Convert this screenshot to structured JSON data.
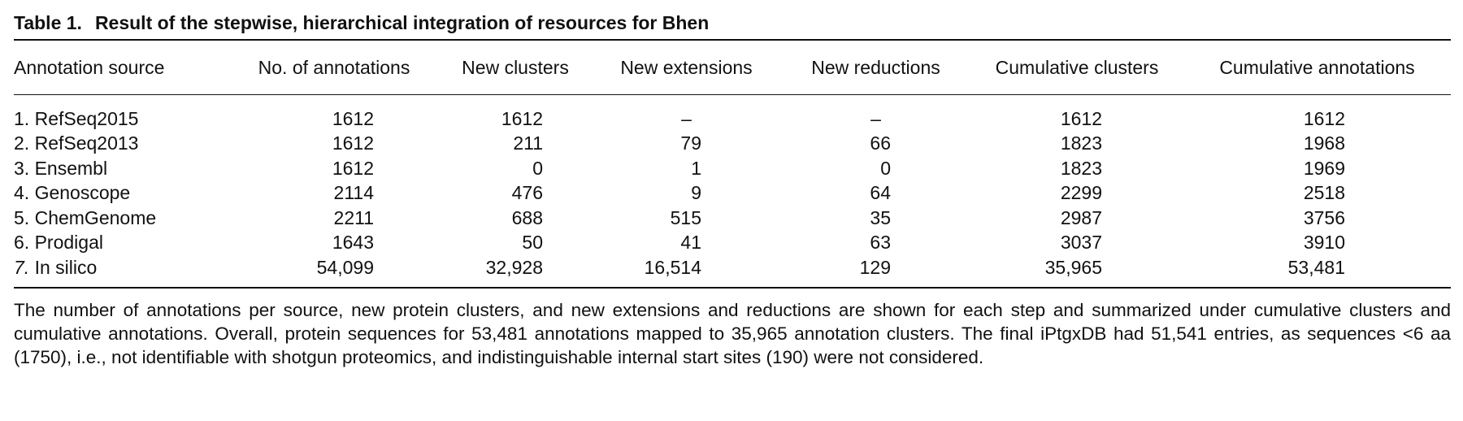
{
  "caption": {
    "label": "Table 1.",
    "title": "Result of the stepwise, hierarchical integration of resources for Bhen"
  },
  "columns": [
    "Annotation source",
    "No. of annotations",
    "New clusters",
    "New extensions",
    "New reductions",
    "Cumulative clusters",
    "Cumulative annotations"
  ],
  "rows": [
    {
      "num": "1.",
      "source": "RefSeq2015",
      "annotations": "1612",
      "new_clusters": "1612",
      "new_extensions": "–",
      "new_reductions": "–",
      "cum_clusters": "1612",
      "cum_annotations": "1612"
    },
    {
      "num": "2.",
      "source": "RefSeq2013",
      "annotations": "1612",
      "new_clusters": "211",
      "new_extensions": "79",
      "new_reductions": "66",
      "cum_clusters": "1823",
      "cum_annotations": "1968"
    },
    {
      "num": "3.",
      "source": "Ensembl",
      "annotations": "1612",
      "new_clusters": "0",
      "new_extensions": "1",
      "new_reductions": "0",
      "cum_clusters": "1823",
      "cum_annotations": "1969"
    },
    {
      "num": "4.",
      "source": "Genoscope",
      "annotations": "2114",
      "new_clusters": "476",
      "new_extensions": "9",
      "new_reductions": "64",
      "cum_clusters": "2299",
      "cum_annotations": "2518"
    },
    {
      "num": "5.",
      "source": "ChemGenome",
      "annotations": "2211",
      "new_clusters": "688",
      "new_extensions": "515",
      "new_reductions": "35",
      "cum_clusters": "2987",
      "cum_annotations": "3756"
    },
    {
      "num": "6.",
      "source": "Prodigal",
      "annotations": "1643",
      "new_clusters": "50",
      "new_extensions": "41",
      "new_reductions": "63",
      "cum_clusters": "3037",
      "cum_annotations": "3910"
    },
    {
      "num": "7.",
      "source": "In silico",
      "annotations": "54,099",
      "new_clusters": "32,928",
      "new_extensions": "16,514",
      "new_reductions": "129",
      "cum_clusters": "35,965",
      "cum_annotations": "53,481"
    }
  ],
  "footnote": "The number of annotations per source, new protein clusters, and new extensions and reductions are shown for each step and summarized under cumulative clusters and cumulative annotations. Overall, protein sequences for 53,481 annotations mapped to 35,965 annotation clusters. The final iPtgxDB had 51,541 entries, as sequences <6 aa (1750), i.e., not identifiable with shotgun proteomics, and indistinguishable internal start sites (190) were not considered."
}
